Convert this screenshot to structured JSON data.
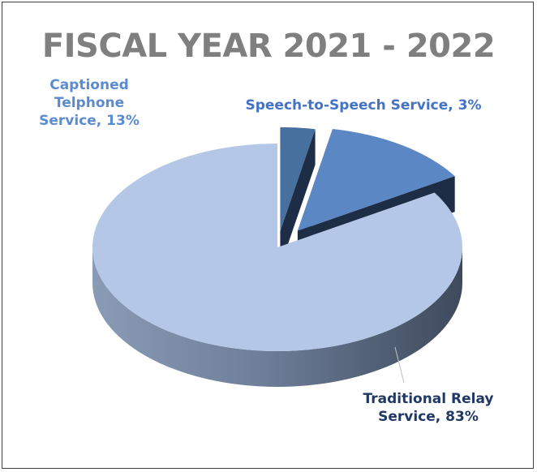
{
  "chart_data": {
    "type": "pie",
    "style": "3d-exploded",
    "title": "FISCAL YEAR 2021 - 2022",
    "slices": [
      {
        "label": "Traditional Relay Service",
        "value": 83,
        "display": "83%",
        "color": "#b4c7e7",
        "label_lines": [
          "Traditional Relay",
          "Service, 83%"
        ],
        "label_color": "#1f3864"
      },
      {
        "label": "Captioned Telphone Service",
        "value": 13,
        "display": "13%",
        "color": "#5b87c5",
        "label_lines": [
          "Captioned",
          "Telphone",
          "Service, 13%"
        ],
        "label_color": "#5b8bd0"
      },
      {
        "label": "Speech-to-Speech Service",
        "value": 3,
        "display": "3%",
        "color": "#47709f",
        "label_lines": [
          "Speech-to-Speech Service, 3%"
        ],
        "label_color": "#4472c4"
      }
    ]
  }
}
